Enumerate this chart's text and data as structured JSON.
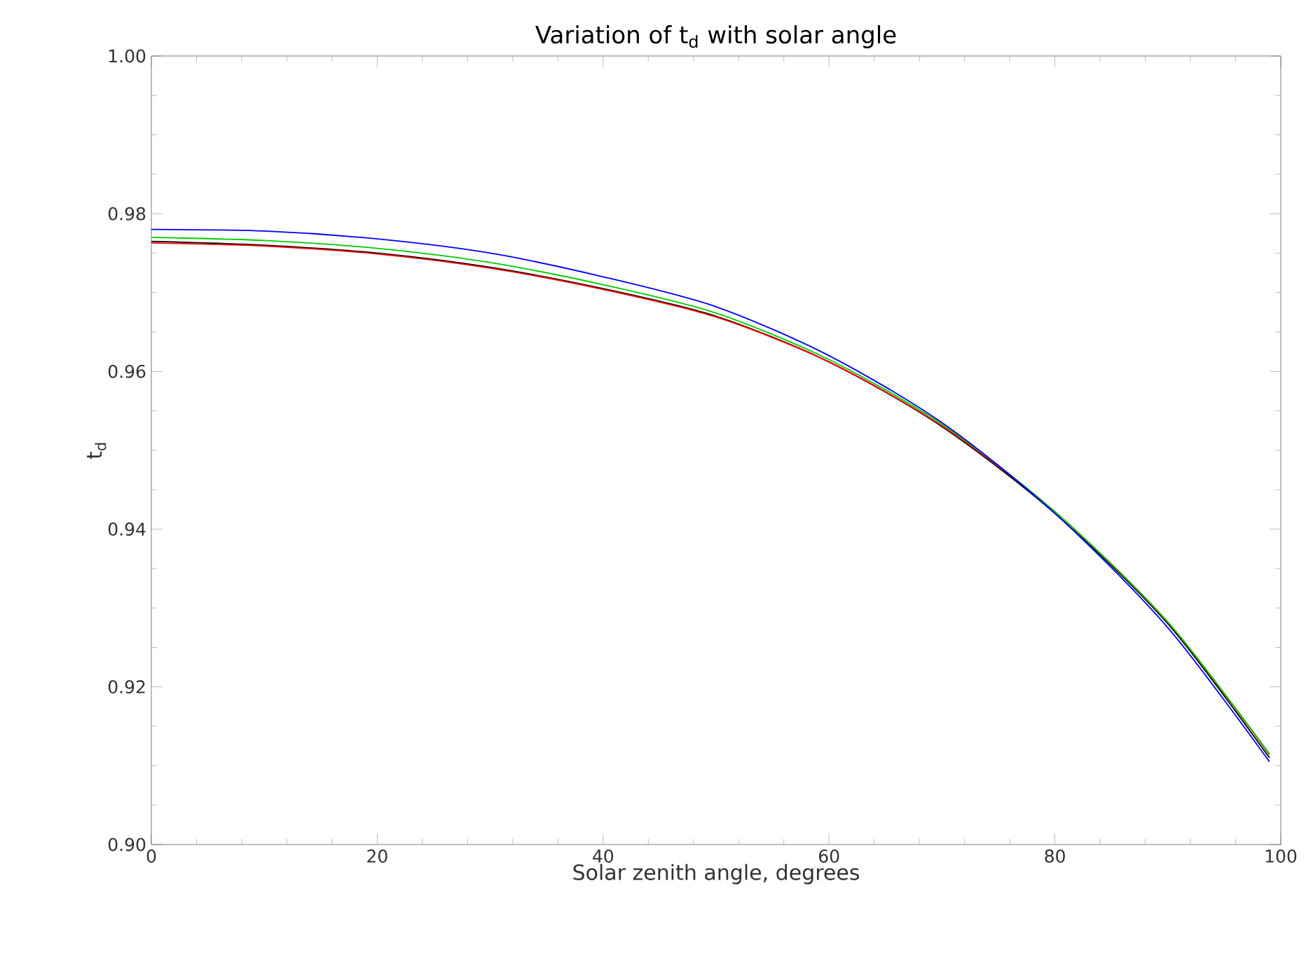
{
  "chart_data": {
    "type": "line",
    "title": "Variation of t$_{d}$ with solar angle",
    "xlabel": "Solar zenith angle, degrees",
    "ylabel": "t$_{d}$",
    "x": [
      0,
      10,
      20,
      30,
      40,
      50,
      60,
      70,
      80,
      90,
      99
    ],
    "series": [
      {
        "color": "#000000",
        "values": [
          0.9765,
          0.976,
          0.975,
          0.9732,
          0.9705,
          0.967,
          0.9612,
          0.953,
          0.942,
          0.928,
          0.911
        ]
      },
      {
        "color": "#ff0000",
        "values": [
          0.9763,
          0.9759,
          0.9749,
          0.9731,
          0.9704,
          0.9669,
          0.9612,
          0.9531,
          0.9422,
          0.9282,
          0.9114
        ]
      },
      {
        "color": "#00cc00",
        "values": [
          0.977,
          0.9766,
          0.9756,
          0.9738,
          0.971,
          0.9674,
          0.9615,
          0.9533,
          0.9422,
          0.9282,
          0.9115
        ]
      },
      {
        "color": "#0000ff",
        "values": [
          0.978,
          0.9778,
          0.9768,
          0.975,
          0.972,
          0.9682,
          0.962,
          0.9535,
          0.942,
          0.9275,
          0.9105
        ]
      }
    ],
    "xlim": [
      0,
      100
    ],
    "xticks": [
      0,
      20,
      40,
      60,
      80,
      100
    ],
    "ylim": [
      0.9,
      1.0
    ],
    "yticks": [
      {
        "value": 0.9,
        "label": "0.90"
      },
      {
        "value": 0.92,
        "label": "0.92"
      },
      {
        "value": 0.94,
        "label": "0.94"
      },
      {
        "value": 0.96,
        "label": "0.96"
      },
      {
        "value": 0.98,
        "label": "0.98"
      },
      {
        "value": 1.0,
        "label": "1.00"
      }
    ],
    "marker": "none",
    "line_style": "solid"
  }
}
